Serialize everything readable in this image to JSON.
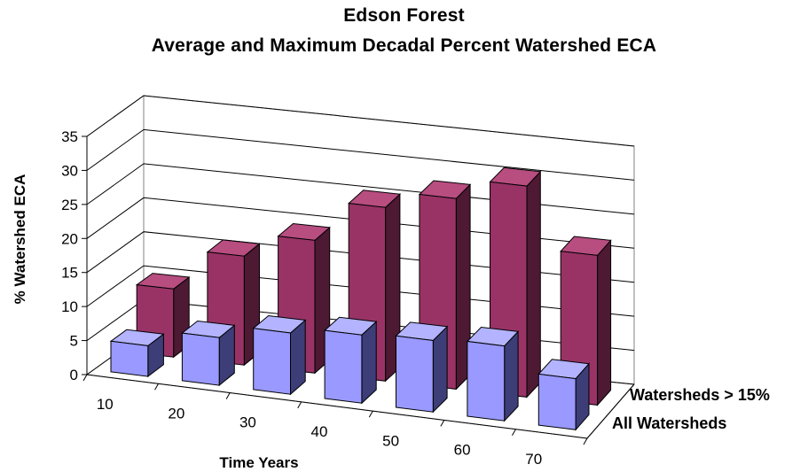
{
  "chart_data": {
    "type": "bar",
    "title": "Edson Forest",
    "subtitle": "Average and Maximum Decadal Percent Watershed ECA",
    "xlabel": "Time Years",
    "ylabel": "% Watershed ECA",
    "ylim": [
      0,
      35
    ],
    "yticks": [
      "0",
      "5",
      "10",
      "15",
      "20",
      "25",
      "30",
      "35"
    ],
    "categories": [
      "10",
      "20",
      "30",
      "40",
      "50",
      "60",
      "70"
    ],
    "grid": true,
    "series": [
      {
        "name": "All Watersheds",
        "values": [
          4.5,
          7,
          9,
          10,
          10.5,
          11,
          7.5
        ]
      },
      {
        "name": "Watersheds > 15%",
        "values": [
          10,
          16,
          19.5,
          25.5,
          28,
          31,
          22
        ]
      }
    ],
    "colors": {
      "All Watersheds": {
        "front": "#9999ff",
        "side": "#3d3d78",
        "top": "#b3b3ff"
      },
      "Watersheds > 15%": {
        "front": "#993366",
        "side": "#4d1933",
        "top": "#b84d80"
      },
      "grid": "#000000",
      "background": "#ffffff"
    }
  }
}
